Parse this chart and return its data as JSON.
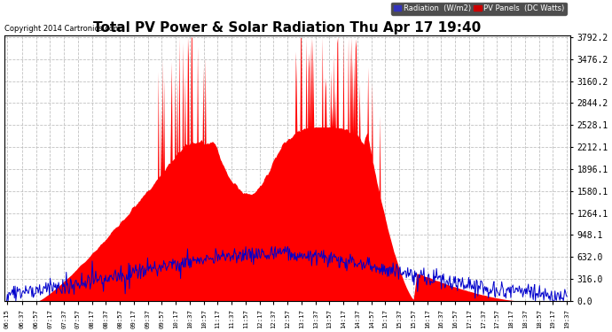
{
  "title": "Total PV Power & Solar Radiation Thu Apr 17 19:40",
  "copyright": "Copyright 2014 Cartronics.com",
  "background_color": "#ffffff",
  "plot_bg_color": "#ffffff",
  "ytick_labels": [
    "0.0",
    "316.0",
    "632.0",
    "948.1",
    "1264.1",
    "1580.1",
    "1896.1",
    "2212.1",
    "2528.1",
    "2844.2",
    "3160.2",
    "3476.2",
    "3792.2"
  ],
  "ytick_values": [
    0.0,
    316.0,
    632.0,
    948.1,
    1264.1,
    1580.1,
    1896.1,
    2212.1,
    2528.1,
    2844.2,
    3160.2,
    3476.2,
    3792.2
  ],
  "ymax": 3792.2,
  "pv_color": "#ff0000",
  "radiation_color": "#0000cc",
  "grid_color": "#bbbbbb",
  "title_fontsize": 11,
  "xtick_labels": [
    "06:15",
    "06:37",
    "06:57",
    "07:17",
    "07:37",
    "07:57",
    "08:17",
    "08:37",
    "08:57",
    "09:17",
    "09:37",
    "09:57",
    "10:17",
    "10:37",
    "10:57",
    "11:17",
    "11:37",
    "11:57",
    "12:17",
    "12:37",
    "12:57",
    "13:17",
    "13:37",
    "13:57",
    "14:17",
    "14:37",
    "14:57",
    "15:17",
    "15:37",
    "15:57",
    "16:17",
    "16:37",
    "16:57",
    "17:17",
    "17:37",
    "17:57",
    "18:17",
    "18:37",
    "18:57",
    "19:17",
    "19:37"
  ]
}
